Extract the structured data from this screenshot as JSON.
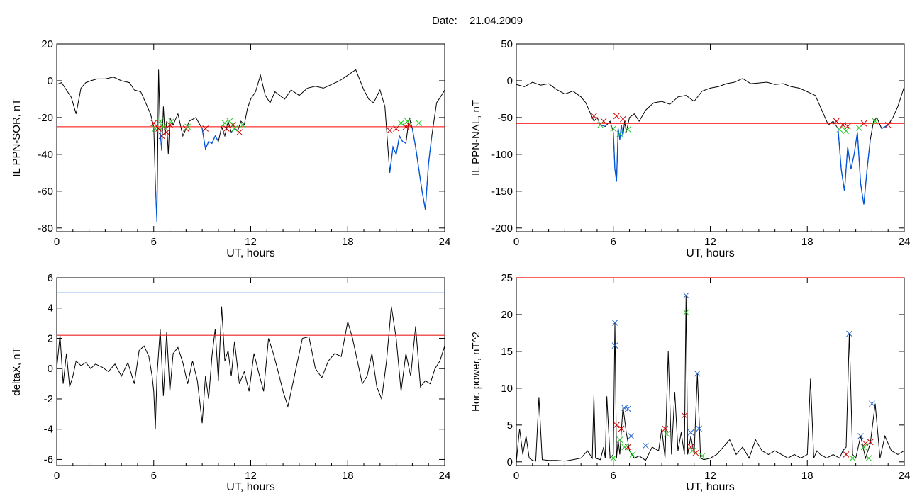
{
  "figure": {
    "title_prefix": "Date:",
    "date": "21.04.2009"
  },
  "chart_data": [
    {
      "id": "p1",
      "type": "line",
      "ylabel": "IL PPN-SOR, nT",
      "xlabel": "UT, hours",
      "xlim": [
        0,
        24
      ],
      "ylim": [
        -82,
        20
      ],
      "xticks": [
        0,
        6,
        12,
        18,
        24
      ],
      "yticks": [
        20,
        0,
        -20,
        -40,
        -60,
        -80
      ],
      "threshold": {
        "value": -25,
        "color": "#ff0000"
      },
      "colors": {
        "line": "#000000",
        "below": "#0055dd",
        "red_marker": "#cc0000",
        "green_marker": "#22cc22"
      },
      "series": [
        {
          "x": [
            0,
            0.3,
            0.6,
            0.9,
            1.2,
            1.5,
            1.8,
            2.1,
            2.5,
            3,
            3.5,
            4,
            4.5,
            4.8,
            5.2,
            5.5,
            5.8,
            6,
            6.1,
            6.2,
            6.3,
            6.4,
            6.5,
            6.6,
            6.7,
            6.8,
            6.9,
            7,
            7.2,
            7.5,
            7.8,
            8.2,
            8.6,
            9,
            9.2,
            9.4,
            9.6,
            9.8,
            10,
            10.2,
            10.4,
            10.6,
            10.8,
            11,
            11.2,
            11.4,
            11.6,
            11.8,
            12,
            12.3,
            12.6,
            12.9,
            13.2,
            13.5,
            13.8,
            14.1,
            14.5,
            15,
            15.5,
            16,
            16.5,
            17,
            17.5,
            18,
            18.5,
            19,
            19.3,
            19.6,
            20,
            20.3,
            20.6,
            20.8,
            21,
            21.2,
            21.4,
            21.6,
            21.8,
            22,
            22.2,
            22.4,
            22.6,
            22.8,
            23,
            23.2,
            23.5,
            23.8,
            24
          ],
          "y": [
            -2,
            -1,
            -5,
            -9,
            -18,
            -4,
            -1,
            0,
            1,
            1,
            2,
            0,
            -1,
            -5,
            -6,
            -12,
            -18,
            -25,
            -55,
            -77,
            6,
            -28,
            -38,
            -14,
            -30,
            -22,
            -40,
            -20,
            -24,
            -18,
            -30,
            -22,
            -20,
            -26,
            -37,
            -33,
            -34,
            -30,
            -33,
            -25,
            -30,
            -22,
            -28,
            -26,
            -27,
            -22,
            -24,
            -15,
            -10,
            -6,
            3,
            -8,
            -12,
            -6,
            -8,
            -10,
            -5,
            -8,
            -4,
            -3,
            -4,
            -2,
            0,
            3,
            6,
            -5,
            -10,
            -12,
            -5,
            -14,
            -50,
            -36,
            -40,
            -30,
            -33,
            -34,
            -20,
            -26,
            -36,
            -48,
            -60,
            -70,
            -45,
            -30,
            -12,
            -8,
            -5
          ]
        }
      ],
      "markers_red": [
        [
          6,
          -23
        ],
        [
          6.3,
          -26
        ],
        [
          6.5,
          -30
        ],
        [
          6.8,
          -28
        ],
        [
          7,
          -24
        ],
        [
          8,
          -26
        ],
        [
          9.2,
          -26
        ],
        [
          10.5,
          -26
        ],
        [
          10.9,
          -24
        ],
        [
          11.3,
          -28
        ],
        [
          20.6,
          -27
        ],
        [
          21,
          -26
        ],
        [
          21.6,
          -25
        ],
        [
          21.8,
          -24
        ]
      ],
      "markers_green": [
        [
          6.1,
          -26
        ],
        [
          6.4,
          -22
        ],
        [
          6.6,
          -25
        ],
        [
          7.1,
          -22
        ],
        [
          8.1,
          -25
        ],
        [
          10.4,
          -23
        ],
        [
          10.7,
          -22
        ],
        [
          11,
          -26
        ],
        [
          11.5,
          -24
        ],
        [
          21.3,
          -23
        ],
        [
          21.7,
          -22
        ],
        [
          22.4,
          -23
        ]
      ]
    },
    {
      "id": "p2",
      "type": "line",
      "ylabel": "IL PPN-NAL, nT",
      "xlabel": "UT, hours",
      "xlim": [
        0,
        24
      ],
      "ylim": [
        -205,
        50
      ],
      "xticks": [
        0,
        6,
        12,
        18,
        24
      ],
      "yticks": [
        50,
        0,
        -50,
        -100,
        -150,
        -200
      ],
      "threshold": {
        "value": -58,
        "color": "#ff0000"
      },
      "colors": {
        "line": "#000000",
        "below": "#0055dd",
        "red_marker": "#cc0000",
        "green_marker": "#22cc22"
      },
      "series": [
        {
          "x": [
            0,
            0.5,
            1,
            1.5,
            2,
            2.5,
            3,
            3.5,
            4,
            4.3,
            4.6,
            4.8,
            5,
            5.2,
            5.5,
            5.8,
            6,
            6.1,
            6.2,
            6.3,
            6.4,
            6.5,
            6.6,
            6.7,
            6.8,
            7,
            7.3,
            7.6,
            8,
            8.5,
            9,
            9.5,
            10,
            10.5,
            11,
            11.5,
            12,
            12.5,
            13,
            13.5,
            14,
            14.5,
            15,
            15.5,
            16,
            16.5,
            17,
            17.5,
            18,
            18.5,
            19,
            19.3,
            19.6,
            19.9,
            20.1,
            20.3,
            20.5,
            20.7,
            20.9,
            21.1,
            21.3,
            21.5,
            21.7,
            21.9,
            22.1,
            22.3,
            22.6,
            23,
            23.3,
            23.6,
            24
          ],
          "y": [
            -5,
            -8,
            -2,
            -6,
            -4,
            -12,
            -18,
            -14,
            -22,
            -30,
            -45,
            -55,
            -50,
            -60,
            -62,
            -55,
            -70,
            -120,
            -137,
            -65,
            -80,
            -60,
            -75,
            -55,
            -70,
            -50,
            -45,
            -55,
            -40,
            -30,
            -28,
            -32,
            -22,
            -20,
            -28,
            -14,
            -10,
            -8,
            -4,
            -2,
            3,
            -4,
            -3,
            -2,
            -5,
            -4,
            -8,
            -10,
            -15,
            -20,
            -45,
            -60,
            -55,
            -65,
            -120,
            -150,
            -90,
            -120,
            -100,
            -70,
            -140,
            -168,
            -120,
            -80,
            -55,
            -50,
            -65,
            -60,
            -50,
            -35,
            -8
          ]
        }
      ],
      "markers_red": [
        [
          4.8,
          -48
        ],
        [
          5.4,
          -55
        ],
        [
          6.2,
          -48
        ],
        [
          6.6,
          -52
        ],
        [
          19.8,
          -55
        ],
        [
          20.2,
          -60
        ],
        [
          20.5,
          -62
        ],
        [
          21.5,
          -58
        ],
        [
          23,
          -60
        ]
      ],
      "markers_green": [
        [
          5.2,
          -60
        ],
        [
          6,
          -65
        ],
        [
          6.4,
          -72
        ],
        [
          6.9,
          -66
        ],
        [
          20,
          -66
        ],
        [
          20.4,
          -68
        ],
        [
          21.2,
          -64
        ],
        [
          22.2,
          -55
        ]
      ]
    },
    {
      "id": "p3",
      "type": "line",
      "ylabel": "deltaX, nT",
      "xlabel": "UT, hours",
      "xlim": [
        0,
        24
      ],
      "ylim": [
        -6.4,
        6
      ],
      "xticks": [
        0,
        6,
        12,
        18,
        24
      ],
      "yticks": [
        6,
        4,
        2,
        0,
        -2,
        -4,
        -6
      ],
      "hlines": [
        {
          "value": 5,
          "color": "#2277dd"
        },
        {
          "value": 2.2,
          "color": "#ee2222"
        }
      ],
      "colors": {
        "line": "#000000"
      },
      "series": [
        {
          "x": [
            0,
            0.2,
            0.4,
            0.6,
            0.8,
            1,
            1.2,
            1.5,
            1.8,
            2.1,
            2.4,
            2.8,
            3.2,
            3.6,
            4,
            4.4,
            4.8,
            5.1,
            5.4,
            5.7,
            5.9,
            6,
            6.1,
            6.2,
            6.4,
            6.6,
            6.8,
            7,
            7.2,
            7.5,
            7.8,
            8.1,
            8.4,
            8.7,
            9,
            9.2,
            9.4,
            9.6,
            9.8,
            10,
            10.2,
            10.4,
            10.6,
            10.8,
            11,
            11.3,
            11.6,
            11.9,
            12.2,
            12.5,
            12.8,
            13.1,
            13.4,
            13.7,
            14,
            14.3,
            14.6,
            14.9,
            15.2,
            15.6,
            16,
            16.4,
            16.8,
            17.2,
            17.6,
            18,
            18.3,
            18.6,
            18.9,
            19.2,
            19.5,
            19.8,
            20.1,
            20.4,
            20.7,
            21,
            21.3,
            21.6,
            21.9,
            22.2,
            22.5,
            22.8,
            23.1,
            23.4,
            23.7,
            24
          ],
          "y": [
            0,
            2.2,
            -1,
            1,
            -1.2,
            -0.5,
            0.5,
            0.2,
            0.4,
            0,
            0.3,
            0.1,
            -0.2,
            0.3,
            -0.5,
            0.4,
            -1,
            1.2,
            1.5,
            0.8,
            -0.5,
            -1.5,
            -4,
            -0.5,
            2.6,
            -1.8,
            2.4,
            -1.5,
            1,
            1.4,
            0.4,
            -1,
            0.5,
            -0.8,
            -3.6,
            -0.5,
            -2,
            0.8,
            2.6,
            -0.8,
            4.1,
            0.5,
            1.2,
            -0.5,
            1.8,
            -1,
            -0.2,
            -1.5,
            1,
            -0.3,
            -1.5,
            2,
            1,
            -0.2,
            -1.5,
            -2.5,
            -1,
            0.5,
            2,
            2.1,
            0,
            -0.6,
            0.5,
            1,
            0.8,
            3.1,
            2,
            0.5,
            -1,
            -0.5,
            1,
            -1.2,
            -2,
            0.5,
            4.1,
            2,
            -1.5,
            1,
            -0.5,
            2.8,
            -1.2,
            -0.8,
            -1,
            0,
            0.5,
            1.5
          ]
        }
      ]
    },
    {
      "id": "p4",
      "type": "line",
      "ylabel": "Hor. power, nT^2",
      "xlabel": "UT, hours",
      "xlim": [
        0,
        24
      ],
      "ylim": [
        -0.5,
        25
      ],
      "xticks": [
        0,
        6,
        12,
        18,
        24
      ],
      "yticks": [
        25,
        20,
        15,
        10,
        5,
        0
      ],
      "hlines": [
        {
          "value": 25,
          "color": "#ff0000"
        }
      ],
      "colors": {
        "line": "#000000",
        "blue_marker": "#2266cc",
        "red_marker": "#cc0000",
        "green_marker": "#22cc22"
      },
      "series": [
        {
          "x": [
            0,
            0.2,
            0.4,
            0.6,
            0.8,
            1,
            1.2,
            1.4,
            1.6,
            2,
            2.5,
            3,
            3.5,
            4,
            4.4,
            4.7,
            4.8,
            4.9,
            5.2,
            5.4,
            5.5,
            5.6,
            5.8,
            6,
            6.1,
            6.2,
            6.3,
            6.4,
            6.6,
            6.8,
            7,
            7.3,
            7.6,
            8,
            8.4,
            8.8,
            9,
            9.2,
            9.4,
            9.6,
            9.8,
            10,
            10.2,
            10.4,
            10.5,
            10.6,
            10.8,
            11,
            11.2,
            11.4,
            11.6,
            12,
            12.4,
            12.8,
            13.2,
            13.6,
            14,
            14.4,
            14.8,
            15.2,
            15.6,
            16,
            16.4,
            16.8,
            17.2,
            17.6,
            18,
            18.2,
            18.4,
            18.6,
            18.8,
            19.2,
            19.6,
            20,
            20.2,
            20.4,
            20.6,
            20.8,
            21,
            21.3,
            21.6,
            21.9,
            22.2,
            22.5,
            22.8,
            23.2,
            23.6,
            24
          ],
          "y": [
            0,
            4.5,
            1,
            3.5,
            0.5,
            0.2,
            0.1,
            8.8,
            0.3,
            0.2,
            0.2,
            0.1,
            0.3,
            0.5,
            1.5,
            0.5,
            9,
            0.5,
            0.3,
            2,
            0.5,
            8.9,
            0.5,
            1,
            18.9,
            0.5,
            3,
            1,
            7.5,
            4,
            1.5,
            0.5,
            0.8,
            0.2,
            2,
            1.5,
            4.5,
            0.5,
            15,
            1,
            9.5,
            1.5,
            4,
            1,
            22.5,
            1,
            3.5,
            1,
            12,
            0.5,
            0.3,
            0.5,
            1,
            2,
            3,
            1,
            2,
            0.5,
            3,
            1.5,
            1,
            1.5,
            1,
            0.5,
            1,
            0.5,
            1,
            11.3,
            0.5,
            1.5,
            1,
            0.5,
            1,
            0.5,
            1.5,
            2,
            17.4,
            1,
            0.5,
            3.5,
            0.5,
            2.5,
            7.9,
            0.5,
            3.5,
            1.5,
            1,
            1.5
          ]
        }
      ],
      "markers_blue": [
        [
          6.1,
          18.9
        ],
        [
          6.1,
          15.8
        ],
        [
          6.7,
          7.3
        ],
        [
          6.9,
          7.2
        ],
        [
          7.1,
          3.5
        ],
        [
          8,
          2.2
        ],
        [
          10.5,
          22.6
        ],
        [
          10.8,
          4
        ],
        [
          11.2,
          12
        ],
        [
          11.3,
          4.5
        ],
        [
          20.6,
          17.4
        ],
        [
          21.3,
          3.5
        ],
        [
          22,
          7.9
        ]
      ],
      "markers_red": [
        [
          6.2,
          5
        ],
        [
          6.5,
          4.5
        ],
        [
          6.9,
          2
        ],
        [
          9.2,
          4.5
        ],
        [
          10.4,
          6.3
        ],
        [
          10.8,
          2
        ],
        [
          11.1,
          1.2
        ],
        [
          20.4,
          1
        ],
        [
          21.6,
          2.5
        ],
        [
          21.9,
          2.7
        ]
      ],
      "markers_green": [
        [
          6,
          0.5
        ],
        [
          6.4,
          3
        ],
        [
          6.7,
          2
        ],
        [
          7.2,
          1
        ],
        [
          9.3,
          3.8
        ],
        [
          10.5,
          20.3
        ],
        [
          10.9,
          1.5
        ],
        [
          11.5,
          0.8
        ],
        [
          20.8,
          0.5
        ],
        [
          21.5,
          2
        ],
        [
          21.8,
          0.5
        ]
      ]
    }
  ]
}
